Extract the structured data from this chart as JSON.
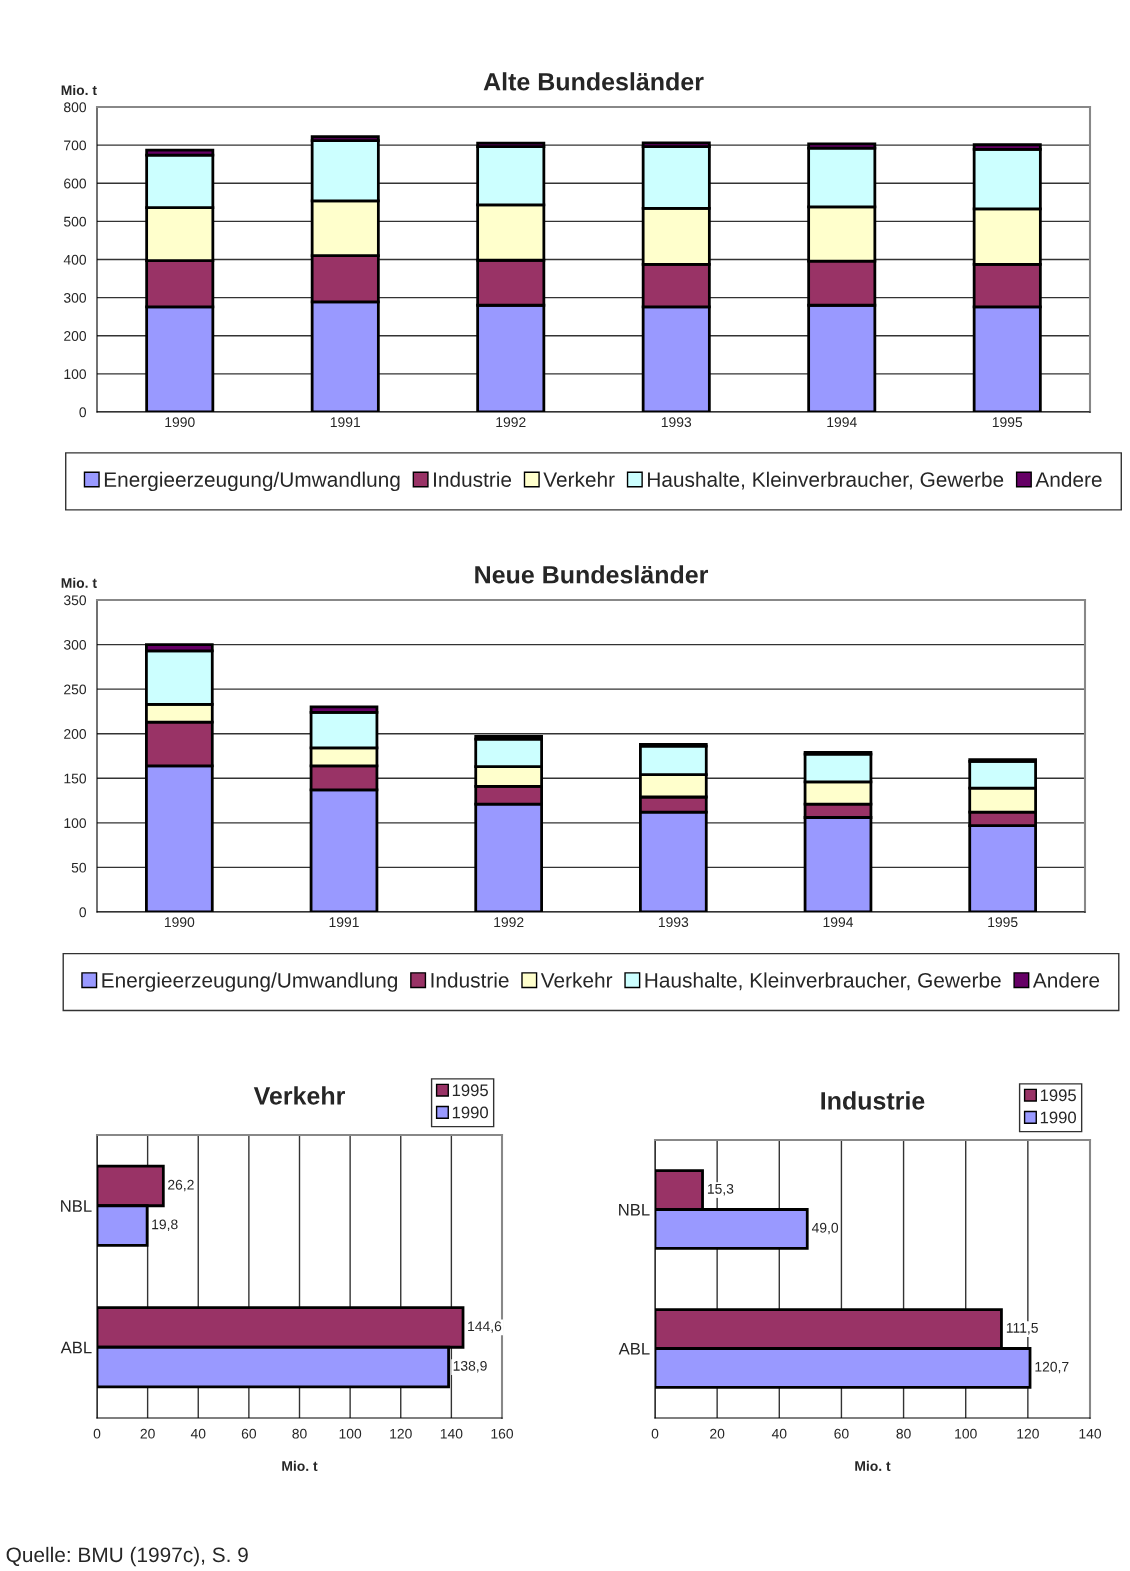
{
  "chart_data": [
    {
      "type": "bar",
      "title": "Alte Bundesländer",
      "ylabel": "Mio. t",
      "stacked": true,
      "categories": [
        "1990",
        "1991",
        "1992",
        "1993",
        "1994",
        "1995"
      ],
      "ylim": [
        0,
        800
      ],
      "yticks": [
        0,
        100,
        200,
        300,
        400,
        500,
        600,
        700,
        800
      ],
      "grid": "y",
      "legend": "bottom",
      "series": [
        {
          "name": "Energieerzeugung/Umwandlung",
          "color": "#9999ff",
          "values": [
            276,
            289,
            280,
            276,
            280,
            276
          ]
        },
        {
          "name": "Industrie",
          "color": "#993366",
          "values": [
            121,
            121,
            118,
            111,
            116,
            111
          ]
        },
        {
          "name": "Verkehr",
          "color": "#ffffcc",
          "values": [
            139,
            144,
            145,
            147,
            142,
            146
          ]
        },
        {
          "name": "Haushalte, Kleinverbraucher, Gewerbe",
          "color": "#ccffff",
          "values": [
            138,
            158,
            153,
            162,
            154,
            156
          ]
        },
        {
          "name": "Andere",
          "color": "#660066",
          "values": [
            13,
            10,
            9,
            10,
            11,
            12
          ]
        }
      ]
    },
    {
      "type": "bar",
      "title": "Neue Bundesländer",
      "ylabel": "Mio. t",
      "stacked": true,
      "categories": [
        "1990",
        "1991",
        "1992",
        "1993",
        "1994",
        "1995"
      ],
      "ylim": [
        0,
        350
      ],
      "yticks": [
        0,
        50,
        100,
        150,
        200,
        250,
        300,
        350
      ],
      "grid": "y",
      "legend": "bottom",
      "series": [
        {
          "name": "Energieerzeugung/Umwandlung",
          "color": "#9999ff",
          "values": [
            164,
            137,
            121,
            112,
            106,
            97
          ]
        },
        {
          "name": "Industrie",
          "color": "#993366",
          "values": [
            49,
            27,
            20,
            17,
            15,
            15
          ]
        },
        {
          "name": "Verkehr",
          "color": "#ffffcc",
          "values": [
            20,
            20,
            22,
            25,
            25,
            27
          ]
        },
        {
          "name": "Haushalte, Kleinverbraucher, Gewerbe",
          "color": "#ccffff",
          "values": [
            60,
            40,
            31,
            32,
            31,
            30
          ]
        },
        {
          "name": "Andere",
          "color": "#660066",
          "values": [
            7,
            6,
            3,
            2,
            2,
            2
          ]
        }
      ]
    },
    {
      "type": "bar",
      "title": "Verkehr",
      "xlabel": "Mio. t",
      "orientation": "horizontal",
      "categories": [
        "NBL",
        "ABL"
      ],
      "xlim": [
        0,
        160
      ],
      "xticks": [
        0,
        20,
        40,
        60,
        80,
        100,
        120,
        140,
        160
      ],
      "grid": "x",
      "legend": "top right",
      "series": [
        {
          "name": "1995",
          "color": "#993366",
          "values": [
            26.2,
            144.6
          ],
          "value_labels": [
            "26,2",
            "144,6"
          ]
        },
        {
          "name": "1990",
          "color": "#9999ff",
          "values": [
            19.8,
            138.9
          ],
          "value_labels": [
            "19,8",
            "138,9"
          ]
        }
      ]
    },
    {
      "type": "bar",
      "title": "Industrie",
      "xlabel": "Mio. t",
      "orientation": "horizontal",
      "categories": [
        "NBL",
        "ABL"
      ],
      "xlim": [
        0,
        140
      ],
      "xticks": [
        0,
        20,
        40,
        60,
        80,
        100,
        120,
        140
      ],
      "grid": "x",
      "legend": "top right",
      "annotations": [
        "Quelle: BMU (1997c), S. 9"
      ],
      "series": [
        {
          "name": "1995",
          "color": "#993366",
          "values": [
            15.3,
            111.5
          ],
          "value_labels": [
            "15,3",
            "111,5"
          ]
        },
        {
          "name": "1990",
          "color": "#9999ff",
          "values": [
            49.0,
            120.7
          ],
          "value_labels": [
            "49,0",
            "120,7"
          ]
        }
      ]
    }
  ]
}
